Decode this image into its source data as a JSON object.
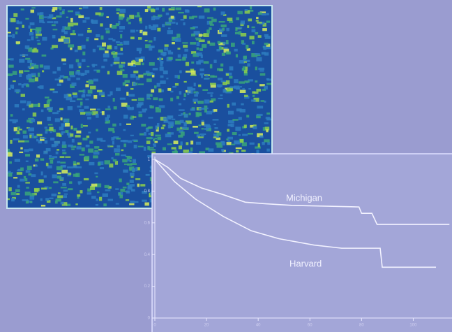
{
  "chart_data": {
    "type": "line",
    "xlim": [
      0,
      115
    ],
    "ylim": [
      0,
      1
    ],
    "xticks": [
      0,
      20,
      40,
      60,
      80,
      100
    ],
    "yticks": [
      0,
      0.2,
      0.4,
      0.6,
      0.8,
      1
    ],
    "series": [
      {
        "name": "Michigan",
        "color": "#f2f2ff",
        "x": [
          0,
          5,
          10,
          18,
          26,
          35,
          43,
          53,
          79,
          80,
          84,
          86,
          114
        ],
        "values": [
          1,
          0.95,
          0.88,
          0.82,
          0.78,
          0.73,
          0.72,
          0.71,
          0.7,
          0.66,
          0.66,
          0.59,
          0.59
        ]
      },
      {
        "name": "Harvard",
        "color": "#f2f2ff",
        "x": [
          0,
          7.6,
          15.7,
          26.5,
          37.3,
          48,
          61.5,
          72.3,
          87.2,
          88,
          108.8
        ],
        "values": [
          1,
          0.86,
          0.75,
          0.64,
          0.55,
          0.5,
          0.46,
          0.44,
          0.44,
          0.32,
          0.32
        ]
      }
    ]
  }
}
